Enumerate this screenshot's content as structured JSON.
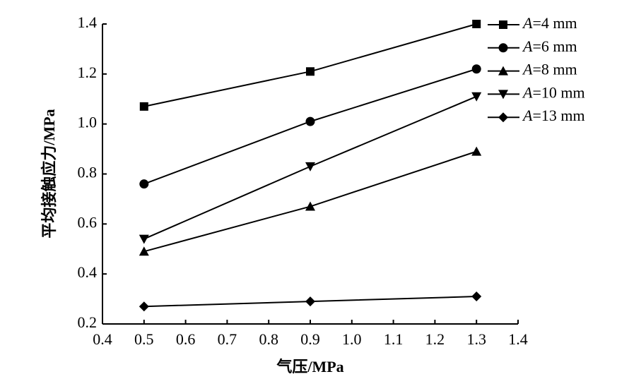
{
  "chart_data": {
    "type": "line",
    "x_label": "气压/MPa",
    "y_label": "平均接触应力/MPa",
    "x": [
      0.5,
      0.9,
      1.3
    ],
    "series": [
      {
        "name": "A=4 mm",
        "color": "#000000",
        "marker": "square",
        "values": [
          1.07,
          1.21,
          1.4
        ]
      },
      {
        "name": "A=6 mm",
        "color": "#000000",
        "marker": "circle",
        "values": [
          0.76,
          1.01,
          1.22
        ]
      },
      {
        "name": "A=8 mm",
        "color": "#000000",
        "marker": "triangle-up",
        "values": [
          0.49,
          0.67,
          0.89
        ]
      },
      {
        "name": "A=10 mm",
        "color": "#000000",
        "marker": "triangle-down",
        "values": [
          0.54,
          0.83,
          1.11
        ]
      },
      {
        "name": "A=13 mm",
        "color": "#000000",
        "marker": "diamond",
        "values": [
          0.27,
          0.29,
          0.31
        ]
      }
    ],
    "xlim": [
      0.4,
      1.4
    ],
    "xticks": [
      0.4,
      0.5,
      0.6,
      0.7,
      0.8,
      0.9,
      {
        "value": 1,
        "label": "1.0"
      },
      1.1,
      1.2,
      1.3,
      1.4
    ],
    "ylim": [
      0.2,
      1.4
    ],
    "yticks": [
      0.2,
      0.4,
      0.6,
      0.8,
      {
        "value": 1,
        "label": "1.0"
      },
      1.2,
      1.4
    ],
    "legend": "upper right outside",
    "grid": false
  }
}
